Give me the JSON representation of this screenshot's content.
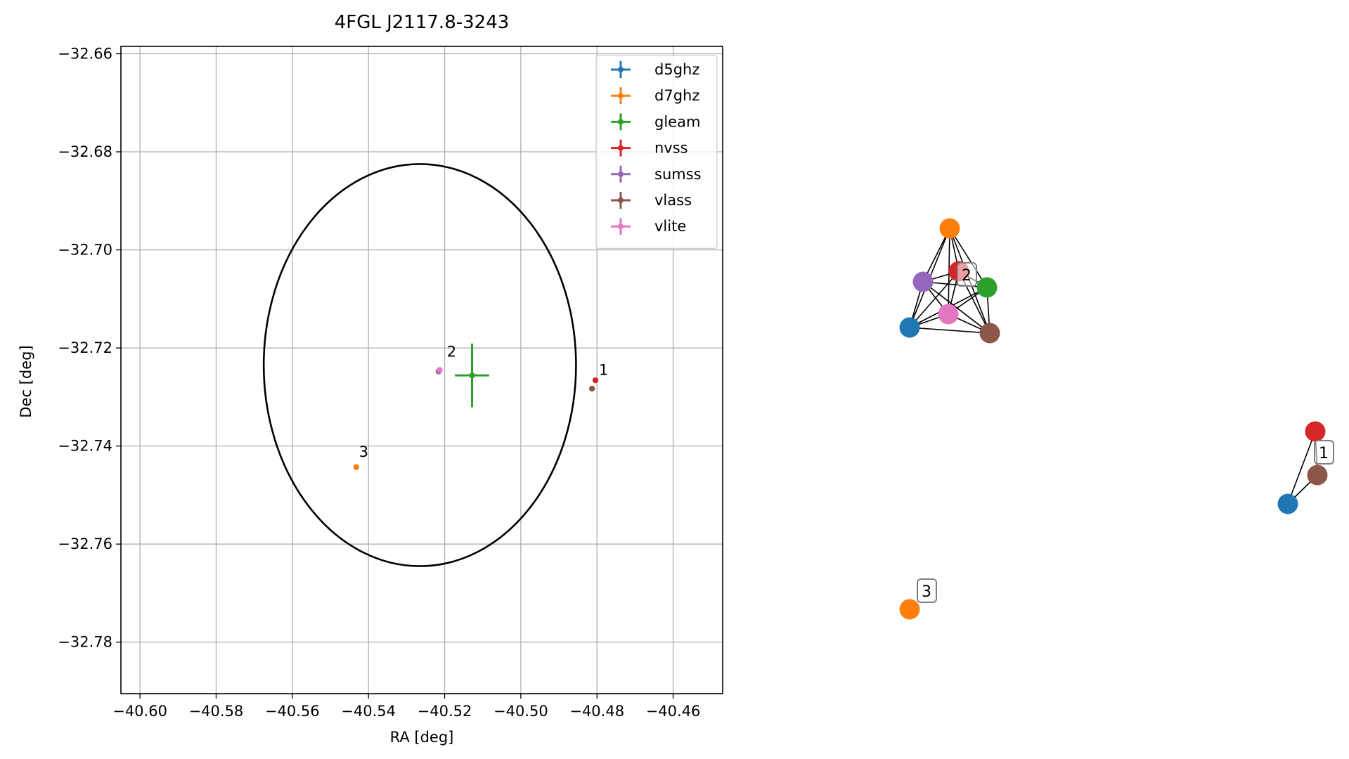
{
  "chart_data": [
    {
      "type": "scatter",
      "title": "4FGL J2117.8-3243",
      "xlabel": "RA [deg]",
      "ylabel": "Dec [deg]",
      "xlim": [
        -40.605,
        -40.447
      ],
      "ylim": [
        -32.7905,
        -32.6585
      ],
      "xticks": [
        -40.6,
        -40.58,
        -40.56,
        -40.54,
        -40.52,
        -40.5,
        -40.48,
        -40.46
      ],
      "xtick_labels": [
        "−40.60",
        "−40.58",
        "−40.56",
        "−40.54",
        "−40.52",
        "−40.50",
        "−40.48",
        "−40.46"
      ],
      "yticks": [
        -32.66,
        -32.68,
        -32.7,
        -32.72,
        -32.74,
        -32.76,
        -32.78
      ],
      "ytick_labels": [
        "−32.66",
        "−32.68",
        "−32.70",
        "−32.72",
        "−32.74",
        "−32.76",
        "−32.78"
      ],
      "grid": true,
      "legend_position": "top-right",
      "circle": {
        "center_ra": -40.5265,
        "center_dec": -32.7235,
        "radius_deg": 0.041
      },
      "series": [
        {
          "name": "d5ghz",
          "color": "#1f77b4",
          "points": []
        },
        {
          "name": "d7ghz",
          "color": "#ff7f0e",
          "points": [
            {
              "ra": -40.5432,
              "dec": -32.7443,
              "ra_err": 0.0,
              "dec_err": 0.0
            }
          ]
        },
        {
          "name": "gleam",
          "color": "#2ca02c",
          "points": [
            {
              "ra": -40.5128,
              "dec": -32.7256,
              "ra_err": 0.0045,
              "dec_err": 0.0065
            }
          ]
        },
        {
          "name": "nvss",
          "color": "#d62728",
          "points": [
            {
              "ra": -40.4804,
              "dec": -32.7266,
              "ra_err": 0.0,
              "dec_err": 0.0
            }
          ]
        },
        {
          "name": "sumss",
          "color": "#9467bd",
          "points": [
            {
              "ra": -40.5216,
              "dec": -32.7248,
              "ra_err": 0.0,
              "dec_err": 0.0
            }
          ]
        },
        {
          "name": "vlass",
          "color": "#8c564b",
          "points": [
            {
              "ra": -40.4813,
              "dec": -32.7283,
              "ra_err": 0.0,
              "dec_err": 0.0
            }
          ]
        },
        {
          "name": "vlite",
          "color": "#e377c2",
          "points": [
            {
              "ra": -40.5213,
              "dec": -32.7245,
              "ra_err": 0.0,
              "dec_err": 0.0
            }
          ]
        }
      ],
      "annotations": [
        {
          "text": "1",
          "ra": -40.4795,
          "dec": -32.7255
        },
        {
          "text": "2",
          "ra": -40.5194,
          "dec": -32.7218
        },
        {
          "text": "3",
          "ra": -40.5425,
          "dec": -32.7422
        }
      ]
    }
  ],
  "graph": {
    "groups": [
      {
        "label": "2",
        "nodes": [
          "d7ghz",
          "nvss",
          "sumss",
          "gleam",
          "vlite",
          "d5ghz",
          "vlass"
        ]
      },
      {
        "label": "1",
        "nodes": [
          "nvss",
          "vlass",
          "d5ghz"
        ]
      },
      {
        "label": "3",
        "nodes": [
          "d7ghz"
        ]
      }
    ],
    "colors": {
      "d5ghz": "#1f77b4",
      "d7ghz": "#ff7f0e",
      "gleam": "#2ca02c",
      "nvss": "#d62728",
      "sumss": "#9467bd",
      "vlass": "#8c564b",
      "vlite": "#e377c2"
    }
  }
}
